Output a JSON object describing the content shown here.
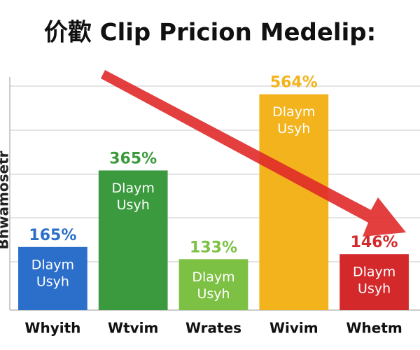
{
  "chart_data": {
    "type": "bar",
    "title": "价歡 Clip Pricion Medelip:",
    "y_label": "Bhwamosetr",
    "categories": [
      "Whyith",
      "Wtvim",
      "Wrates",
      "Wivim",
      "Whetm"
    ],
    "values": [
      165,
      365,
      133,
      564,
      146
    ],
    "value_labels": [
      "165%",
      "365%",
      "133%",
      "564%",
      "146%"
    ],
    "inner_labels": [
      [
        "Dlaym",
        "Usyh"
      ],
      [
        "Dlaym",
        "Usyh"
      ],
      [
        "Dlaym",
        "Usyh"
      ],
      [
        "Dlaym",
        "Usyh"
      ],
      [
        "Dlaym",
        "Usyh"
      ]
    ],
    "colors": [
      "#2b6fcb",
      "#3c9a3e",
      "#7cc143",
      "#f3b31c",
      "#d3292b"
    ],
    "ylim": [
      0,
      600
    ]
  }
}
